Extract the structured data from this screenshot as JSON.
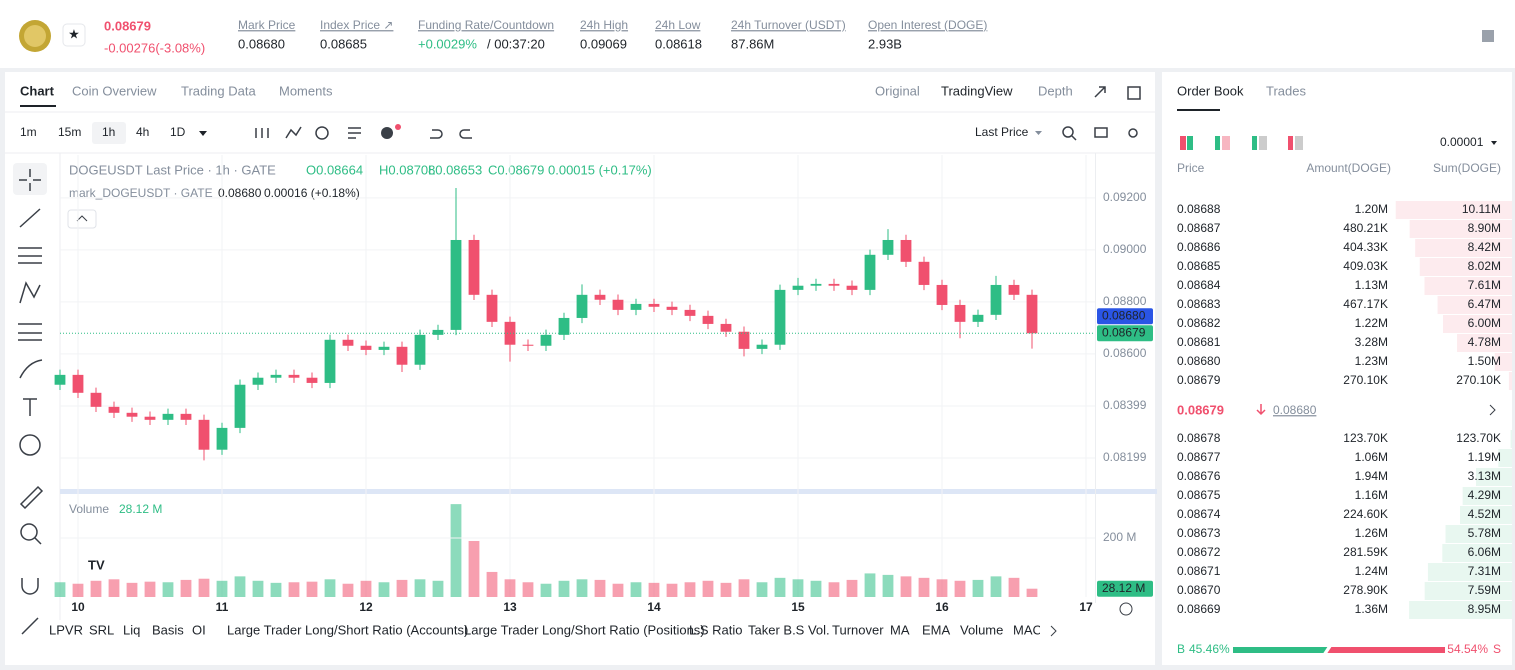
{
  "header": {
    "price": "0.08679",
    "change": "-0.00276(-3.08%)",
    "stats": [
      {
        "label": "Mark Price",
        "value": "0.08680"
      },
      {
        "label": "Index Price ↗",
        "value": "0.08685"
      },
      {
        "label": "Funding Rate/Countdown",
        "value": "+0.0029%",
        "extra": "/ 00:37:20"
      },
      {
        "label": "24h High",
        "value": "0.09069"
      },
      {
        "label": "24h Low",
        "value": "0.08618"
      },
      {
        "label": "24h Turnover (USDT)",
        "value": "87.86M"
      },
      {
        "label": "Open Interest (DOGE)",
        "value": "2.93B"
      }
    ]
  },
  "tabs": [
    "Chart",
    "Coin Overview",
    "Trading Data",
    "Moments"
  ],
  "views": [
    "Original",
    "TradingView",
    "Depth"
  ],
  "intervals": [
    "1m",
    "15m",
    "1h",
    "4h",
    "1D"
  ],
  "price_source": "Last Price",
  "legend": {
    "title": "DOGEUSDT Last Price · 1h · GATE",
    "ohlc": [
      "O0.08664",
      "H0.08708",
      "L0.08653",
      "C0.08679",
      "0.00015 (+0.17%)"
    ],
    "mark_title": "mark_DOGEUSDT · GATE",
    "mark_values": [
      "0.08680",
      "0.00016 (+0.18%)"
    ]
  },
  "chart_data": {
    "type": "candlestick",
    "x": [
      -3,
      0,
      3,
      6,
      9,
      12,
      15,
      18,
      21,
      24,
      27,
      30,
      33,
      36,
      39,
      42,
      45,
      48,
      51,
      54,
      57,
      60,
      63,
      66,
      69,
      72,
      75,
      78,
      81,
      84,
      87,
      90,
      93,
      96,
      99,
      102,
      105,
      108,
      111,
      114,
      117,
      120,
      123,
      126,
      129,
      132,
      135,
      138,
      141,
      144,
      147,
      150,
      153,
      156,
      159
    ],
    "open": [
      0.08481,
      0.08519,
      0.0845,
      0.08396,
      0.08373,
      0.08358,
      0.08346,
      0.08369,
      0.08346,
      0.08231,
      0.08315,
      0.08481,
      0.08508,
      0.08519,
      0.08508,
      0.08488,
      0.08654,
      0.08631,
      0.08615,
      0.08627,
      0.08558,
      0.08673,
      0.08692,
      0.09038,
      0.08827,
      0.08723,
      0.08635,
      0.08631,
      0.08673,
      0.08738,
      0.08827,
      0.08808,
      0.08769,
      0.08792,
      0.08781,
      0.08769,
      0.08746,
      0.08715,
      0.08685,
      0.08619,
      0.08635,
      0.08846,
      0.08862,
      0.08869,
      0.08862,
      0.08846,
      0.08981,
      0.09038,
      0.08954,
      0.08865,
      0.08788,
      0.08723,
      0.0875,
      0.08865,
      0.08827
    ],
    "high": [
      0.08539,
      0.08539,
      0.0847,
      0.08416,
      0.08393,
      0.08378,
      0.08389,
      0.08389,
      0.08366,
      0.08335,
      0.08501,
      0.08528,
      0.08539,
      0.08539,
      0.08528,
      0.08674,
      0.08674,
      0.08651,
      0.08647,
      0.08647,
      0.08693,
      0.08712,
      0.09238,
      0.09058,
      0.08847,
      0.08743,
      0.08655,
      0.08693,
      0.08758,
      0.08867,
      0.08847,
      0.08828,
      0.08812,
      0.08812,
      0.08801,
      0.08789,
      0.08766,
      0.08735,
      0.08705,
      0.08655,
      0.08866,
      0.08892,
      0.08889,
      0.08889,
      0.08882,
      0.09001,
      0.0908,
      0.09058,
      0.08974,
      0.08885,
      0.08808,
      0.0877,
      0.089,
      0.08885,
      0.08847
    ],
    "low": [
      0.08461,
      0.0843,
      0.08376,
      0.08353,
      0.08338,
      0.08326,
      0.08326,
      0.08326,
      0.0819,
      0.08211,
      0.08295,
      0.08461,
      0.08488,
      0.08488,
      0.08468,
      0.08468,
      0.08611,
      0.08595,
      0.08595,
      0.0853,
      0.08538,
      0.08653,
      0.08672,
      0.08807,
      0.08703,
      0.0857,
      0.08611,
      0.08611,
      0.08653,
      0.08718,
      0.08788,
      0.08749,
      0.08749,
      0.08761,
      0.08749,
      0.08726,
      0.08695,
      0.08665,
      0.0859,
      0.08599,
      0.08615,
      0.08826,
      0.08842,
      0.08842,
      0.08826,
      0.08826,
      0.08961,
      0.08934,
      0.08845,
      0.08768,
      0.0866,
      0.08703,
      0.0873,
      0.08807,
      0.0862
    ],
    "close": [
      0.08519,
      0.0845,
      0.08396,
      0.08373,
      0.08358,
      0.08346,
      0.08369,
      0.08346,
      0.08231,
      0.08315,
      0.08481,
      0.08508,
      0.08519,
      0.08508,
      0.08488,
      0.08654,
      0.08631,
      0.08615,
      0.08627,
      0.08558,
      0.08673,
      0.08692,
      0.09038,
      0.08827,
      0.08723,
      0.08635,
      0.08631,
      0.08673,
      0.08738,
      0.08827,
      0.08808,
      0.08769,
      0.08792,
      0.08781,
      0.08769,
      0.08746,
      0.08715,
      0.08685,
      0.08619,
      0.08635,
      0.08846,
      0.08862,
      0.08869,
      0.08862,
      0.08846,
      0.08981,
      0.09038,
      0.08954,
      0.08865,
      0.08788,
      0.08723,
      0.0875,
      0.08865,
      0.08827,
      0.08679
    ],
    "xlim": [
      -3,
      169.5
    ],
    "xticks": [
      {
        "value": 0,
        "label": "10"
      },
      {
        "value": 24,
        "label": "11"
      },
      {
        "value": 48,
        "label": "12"
      },
      {
        "value": 72,
        "label": "13"
      },
      {
        "value": 96,
        "label": "14"
      },
      {
        "value": 120,
        "label": "15"
      },
      {
        "value": 144,
        "label": "16"
      },
      {
        "value": 168,
        "label": "17"
      }
    ],
    "ylim": [
      0.08076,
      0.09365
    ],
    "yticks": [
      {
        "value": 0.092,
        "label": "0.09200"
      },
      {
        "value": 0.09,
        "label": "0.09000"
      },
      {
        "value": 0.088,
        "label": "0.08800"
      },
      {
        "value": 0.086,
        "label": "0.08600"
      },
      {
        "value": 0.08399,
        "label": "0.08399"
      },
      {
        "value": 0.08199,
        "label": "0.08199"
      }
    ],
    "up_color": "#2ebd85",
    "down_color": "#f0506e",
    "grid": true,
    "price_tags": [
      {
        "value": 0.0868,
        "label": "0.08680",
        "color": "#2a55e5"
      },
      {
        "value": 0.08679,
        "label": "0.08679",
        "color": "#2ebd85"
      }
    ],
    "volume": {
      "title": "Volume",
      "values": [
        50,
        45,
        55,
        60,
        48,
        52,
        50,
        58,
        62,
        55,
        70,
        55,
        48,
        50,
        52,
        60,
        45,
        55,
        50,
        58,
        60,
        55,
        315,
        190,
        85,
        60,
        50,
        45,
        55,
        60,
        58,
        45,
        50,
        48,
        45,
        50,
        55,
        48,
        60,
        50,
        65,
        60,
        55,
        50,
        58,
        80,
        75,
        70,
        65,
        60,
        55,
        58,
        70,
        65,
        28.12
      ],
      "last_label": "28.12 M",
      "ylim": [
        0,
        329
      ],
      "yticks": [
        {
          "value": 200,
          "label": "200 M"
        }
      ]
    }
  },
  "indicators": [
    "LPVR",
    "SRL",
    "Liq",
    "Basis",
    "OI",
    "Large Trader Long/Short Ratio (Accounts)",
    "Large Trader Long/Short Ratio (Positions)",
    "L.S Ratio",
    "Taker B.S Vol.",
    "Turnover",
    "MA",
    "EMA",
    "Volume",
    "MACD"
  ],
  "order_book": {
    "tabs": [
      "Order Book",
      "Trades"
    ],
    "precision": "0.00001",
    "columns": [
      "Price",
      "Amount(DOGE)",
      "Sum(DOGE)"
    ],
    "asks": {
      "prices": [
        "0.08688",
        "0.08687",
        "0.08686",
        "0.08685",
        "0.08684",
        "0.08683",
        "0.08682",
        "0.08681",
        "0.08680",
        "0.08679"
      ],
      "amounts": [
        "1.20M",
        "480.21K",
        "404.33K",
        "409.03K",
        "1.13M",
        "467.17K",
        "1.22M",
        "3.28M",
        "1.23M",
        "270.10K"
      ],
      "sums": [
        10.11,
        8.9,
        8.42,
        8.02,
        7.61,
        6.47,
        6.0,
        4.78,
        1.5,
        0.2701
      ],
      "sum_labels": [
        "10.11M",
        "8.90M",
        "8.42M",
        "8.02M",
        "7.61M",
        "6.47M",
        "6.00M",
        "4.78M",
        "1.50M",
        "270.10K"
      ]
    },
    "last_price": "0.08679",
    "mark_price": "0.08680",
    "bids": {
      "prices": [
        "0.08678",
        "0.08677",
        "0.08676",
        "0.08675",
        "0.08674",
        "0.08673",
        "0.08672",
        "0.08671",
        "0.08670",
        "0.08669"
      ],
      "amounts": [
        "123.70K",
        "1.06M",
        "1.94M",
        "1.16M",
        "224.60K",
        "1.26M",
        "281.59K",
        "1.24M",
        "278.90K",
        "1.36M"
      ],
      "sums": [
        0.1237,
        1.19,
        3.13,
        4.29,
        4.52,
        5.78,
        6.06,
        7.31,
        7.59,
        8.95
      ],
      "sum_labels": [
        "123.70K",
        "1.19M",
        "3.13M",
        "4.29M",
        "4.52M",
        "5.78M",
        "6.06M",
        "7.31M",
        "7.59M",
        "8.95M"
      ]
    },
    "ratio": {
      "buy_mark": "B",
      "sell_mark": "S",
      "buy": 45.46,
      "sell": 54.54,
      "buy_label": "45.46%",
      "sell_label": "54.54%"
    }
  }
}
